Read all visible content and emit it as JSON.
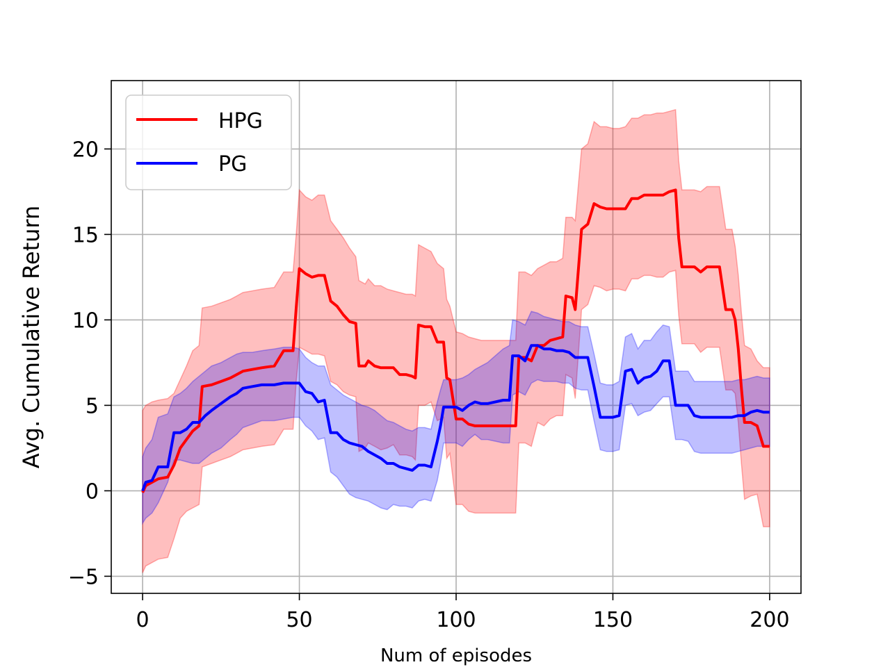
{
  "chart_data": {
    "type": "line",
    "title": "",
    "xlabel": "Num of episodes",
    "ylabel": "Avg. Cumulative Return",
    "xlim": [
      -10,
      210
    ],
    "ylim": [
      -6,
      24
    ],
    "xticks": [
      0,
      50,
      100,
      150,
      200
    ],
    "yticks": [
      -5,
      0,
      5,
      10,
      15,
      20
    ],
    "xtick_labels": [
      "0",
      "50",
      "100",
      "150",
      "200"
    ],
    "ytick_labels": [
      "−5",
      "0",
      "5",
      "10",
      "15",
      "20"
    ],
    "grid": true,
    "legend_position": "top-left",
    "series": [
      {
        "name": "HPG",
        "color": "#ff0000",
        "band_color": "#ff0000",
        "x": [
          0,
          1,
          3,
          5,
          8,
          10,
          12,
          14,
          16,
          18,
          19,
          22,
          25,
          28,
          30,
          32,
          35,
          38,
          42,
          45,
          48,
          49,
          50,
          52,
          54,
          56,
          58,
          60,
          62,
          64,
          66,
          68,
          69,
          71,
          72,
          74,
          76,
          78,
          80,
          82,
          84,
          86,
          87,
          88,
          90,
          92,
          94,
          96,
          97,
          98,
          100,
          102,
          104,
          106,
          108,
          110,
          115,
          118,
          119,
          120,
          122,
          124,
          126,
          128,
          130,
          132,
          134,
          135,
          137,
          138,
          140,
          142,
          144,
          146,
          148,
          150,
          152,
          154,
          156,
          158,
          160,
          162,
          164,
          166,
          168,
          170,
          171,
          172,
          174,
          176,
          178,
          180,
          182,
          184,
          186,
          188,
          189,
          190,
          191,
          192,
          194,
          196,
          198,
          200
        ],
        "mean": [
          -0.1,
          0.3,
          0.5,
          0.7,
          0.8,
          1.5,
          2.5,
          3.0,
          3.5,
          3.8,
          6.1,
          6.2,
          6.4,
          6.6,
          6.8,
          7.0,
          7.1,
          7.2,
          7.3,
          8.2,
          8.2,
          10.7,
          13.0,
          12.7,
          12.5,
          12.6,
          12.6,
          11.1,
          10.8,
          10.3,
          9.9,
          9.8,
          7.3,
          7.3,
          7.6,
          7.3,
          7.2,
          7.2,
          7.2,
          6.8,
          6.8,
          6.7,
          6.6,
          9.7,
          9.6,
          9.6,
          8.7,
          8.7,
          6.6,
          6.5,
          4.2,
          4.2,
          3.9,
          3.8,
          3.8,
          3.8,
          3.8,
          3.8,
          3.8,
          7.8,
          7.8,
          7.6,
          8.5,
          8.5,
          8.8,
          8.9,
          9.0,
          11.4,
          11.3,
          10.6,
          15.3,
          15.6,
          16.8,
          16.6,
          16.5,
          16.5,
          16.5,
          16.5,
          17.1,
          17.1,
          17.3,
          17.3,
          17.3,
          17.3,
          17.5,
          17.6,
          14.8,
          13.1,
          13.1,
          13.1,
          12.8,
          13.1,
          13.1,
          13.1,
          10.6,
          10.6,
          10.0,
          8.3,
          6.0,
          4.0,
          4.0,
          3.8,
          2.6,
          2.6
        ],
        "upper": [
          4.7,
          5.0,
          5.2,
          5.3,
          5.4,
          5.7,
          6.5,
          7.3,
          8.2,
          8.5,
          10.7,
          10.8,
          11.0,
          11.2,
          11.4,
          11.6,
          11.7,
          11.8,
          11.9,
          12.8,
          12.8,
          15.0,
          17.6,
          17.2,
          17.0,
          17.3,
          17.3,
          15.8,
          15.3,
          14.8,
          14.2,
          13.7,
          12.3,
          12.1,
          12.4,
          12.0,
          12.0,
          11.8,
          11.7,
          11.6,
          11.5,
          11.5,
          11.4,
          14.4,
          14.2,
          14.0,
          13.3,
          13.0,
          11.2,
          10.8,
          9.3,
          9.2,
          9.0,
          8.9,
          8.8,
          8.8,
          8.8,
          8.8,
          8.8,
          12.8,
          12.8,
          12.6,
          13.0,
          13.2,
          13.4,
          13.4,
          13.6,
          16.0,
          16.0,
          15.8,
          20.0,
          20.3,
          21.6,
          21.3,
          21.3,
          21.2,
          21.2,
          21.3,
          21.8,
          21.8,
          22.0,
          22.0,
          22.1,
          22.1,
          22.2,
          22.3,
          19.3,
          17.6,
          17.6,
          17.6,
          17.5,
          17.8,
          17.8,
          17.8,
          15.3,
          15.3,
          14.3,
          12.6,
          10.4,
          8.5,
          8.3,
          7.6,
          7.2,
          7.2
        ],
        "lower": [
          -4.8,
          -4.4,
          -4.2,
          -4.0,
          -3.9,
          -2.8,
          -1.6,
          -1.2,
          -1.0,
          -0.8,
          1.4,
          1.6,
          1.8,
          2.0,
          2.2,
          2.4,
          2.5,
          2.6,
          2.7,
          3.6,
          3.6,
          6.4,
          8.4,
          8.2,
          8.0,
          8.0,
          7.9,
          6.4,
          6.2,
          5.8,
          5.6,
          5.5,
          2.3,
          2.5,
          2.8,
          2.6,
          2.4,
          2.5,
          2.7,
          2.1,
          2.1,
          2.0,
          1.8,
          5.0,
          5.0,
          5.2,
          4.1,
          4.3,
          1.9,
          2.2,
          -0.8,
          -0.8,
          -1.2,
          -1.3,
          -1.3,
          -1.3,
          -1.3,
          -1.3,
          -1.3,
          2.8,
          2.8,
          2.6,
          4.0,
          3.8,
          4.2,
          4.4,
          4.4,
          6.8,
          6.6,
          5.4,
          10.6,
          10.9,
          12.0,
          11.9,
          11.7,
          11.8,
          11.8,
          11.7,
          12.4,
          12.4,
          12.6,
          12.6,
          12.5,
          12.5,
          12.8,
          12.9,
          10.3,
          8.6,
          8.6,
          8.6,
          8.1,
          8.4,
          8.4,
          8.4,
          5.9,
          5.9,
          5.7,
          4.0,
          1.6,
          -0.5,
          -0.3,
          -0.2,
          -2.1,
          -2.1
        ]
      },
      {
        "name": "PG",
        "color": "#0000ff",
        "band_color": "#0000ff",
        "x": [
          0,
          1,
          3,
          5,
          8,
          10,
          12,
          14,
          16,
          18,
          20,
          22,
          25,
          28,
          30,
          32,
          35,
          38,
          42,
          45,
          48,
          50,
          52,
          54,
          56,
          58,
          60,
          62,
          64,
          66,
          68,
          70,
          72,
          74,
          76,
          78,
          80,
          82,
          84,
          86,
          88,
          90,
          92,
          94,
          95,
          96,
          98,
          100,
          102,
          104,
          106,
          108,
          110,
          115,
          117,
          118,
          120,
          122,
          124,
          126,
          128,
          130,
          132,
          134,
          136,
          138,
          140,
          142,
          144,
          146,
          148,
          150,
          152,
          154,
          156,
          158,
          160,
          162,
          164,
          166,
          168,
          170,
          172,
          174,
          176,
          178,
          180,
          182,
          184,
          186,
          188,
          190,
          192,
          194,
          196,
          198,
          200
        ],
        "mean": [
          0.0,
          0.5,
          0.6,
          1.4,
          1.4,
          3.4,
          3.4,
          3.6,
          4.0,
          4.0,
          4.4,
          4.7,
          5.1,
          5.5,
          5.7,
          6.0,
          6.1,
          6.2,
          6.2,
          6.3,
          6.3,
          6.3,
          5.8,
          5.7,
          5.2,
          5.3,
          3.4,
          3.4,
          3.0,
          2.8,
          2.7,
          2.6,
          2.3,
          2.1,
          1.9,
          1.6,
          1.6,
          1.4,
          1.3,
          1.2,
          1.5,
          1.5,
          1.4,
          2.9,
          3.8,
          4.9,
          4.9,
          4.9,
          4.7,
          5.0,
          5.2,
          5.1,
          5.1,
          5.3,
          5.3,
          7.9,
          7.9,
          7.6,
          8.5,
          8.5,
          8.3,
          8.3,
          8.2,
          8.2,
          8.1,
          7.8,
          7.8,
          7.8,
          6.1,
          4.3,
          4.3,
          4.3,
          4.4,
          7.0,
          7.1,
          6.3,
          6.6,
          6.7,
          7.0,
          7.6,
          7.6,
          5.0,
          5.0,
          5.0,
          4.4,
          4.3,
          4.3,
          4.3,
          4.3,
          4.3,
          4.3,
          4.4,
          4.4,
          4.6,
          4.7,
          4.6,
          4.6
        ],
        "upper": [
          2.0,
          2.5,
          3.0,
          4.3,
          4.5,
          5.5,
          5.7,
          6.0,
          6.4,
          6.7,
          7.0,
          7.3,
          7.5,
          7.8,
          8.0,
          8.1,
          8.1,
          8.2,
          8.3,
          8.4,
          8.4,
          8.3,
          7.8,
          7.5,
          7.3,
          7.3,
          6.2,
          5.9,
          5.6,
          5.4,
          5.2,
          5.0,
          4.9,
          4.7,
          4.4,
          4.1,
          4.0,
          3.8,
          3.6,
          3.5,
          3.7,
          3.7,
          3.6,
          5.2,
          5.9,
          6.5,
          6.5,
          6.5,
          6.6,
          6.8,
          7.1,
          7.3,
          7.5,
          8.3,
          8.5,
          10.0,
          9.9,
          9.7,
          10.5,
          10.4,
          10.2,
          10.1,
          10.0,
          9.9,
          9.9,
          9.7,
          9.6,
          9.6,
          8.0,
          6.3,
          6.2,
          6.2,
          6.4,
          9.0,
          9.2,
          8.3,
          8.8,
          8.8,
          9.3,
          9.7,
          9.6,
          7.0,
          7.0,
          7.0,
          6.4,
          6.4,
          6.4,
          6.4,
          6.4,
          6.4,
          6.4,
          6.5,
          6.5,
          6.6,
          6.7,
          6.6,
          6.6
        ],
        "lower": [
          -1.9,
          -1.6,
          -1.3,
          -0.7,
          0.5,
          1.8,
          1.8,
          1.7,
          1.6,
          1.6,
          1.9,
          2.2,
          2.5,
          3.0,
          3.3,
          3.7,
          3.9,
          4.1,
          4.1,
          4.2,
          4.3,
          4.3,
          3.8,
          3.5,
          3.0,
          3.1,
          1.1,
          0.8,
          0.3,
          -0.2,
          -0.4,
          -0.5,
          -0.6,
          -0.8,
          -1.0,
          -1.1,
          -0.8,
          -0.9,
          -0.9,
          -1.0,
          -0.6,
          -0.5,
          -0.6,
          0.6,
          1.6,
          2.8,
          2.8,
          2.8,
          2.6,
          3.0,
          3.3,
          3.0,
          3.0,
          2.8,
          2.8,
          5.6,
          5.8,
          5.6,
          6.3,
          6.5,
          6.4,
          6.4,
          6.4,
          6.3,
          6.3,
          6.0,
          5.9,
          5.9,
          4.1,
          2.4,
          2.3,
          2.3,
          2.4,
          5.0,
          5.1,
          4.4,
          4.6,
          4.7,
          5.1,
          5.5,
          5.5,
          3.0,
          3.0,
          2.9,
          2.3,
          2.2,
          2.2,
          2.2,
          2.2,
          2.2,
          2.2,
          2.3,
          2.4,
          2.5,
          2.6,
          2.6,
          2.6
        ]
      }
    ]
  }
}
